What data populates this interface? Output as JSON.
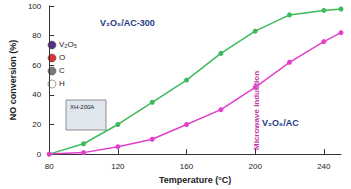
{
  "chart_data": {
    "type": "line",
    "x_label": "Temperature (°C)",
    "y_label": "NO conversion (%)",
    "x": [
      80,
      100,
      120,
      140,
      160,
      180,
      200,
      220,
      240,
      250
    ],
    "series": [
      {
        "name": "V₂O₅/AC-300",
        "color": "#3dba5a",
        "marker": "circle",
        "values": [
          0,
          7,
          20,
          35,
          50,
          68,
          83,
          94,
          97,
          98
        ]
      },
      {
        "name": "V₂O₅/AC",
        "color": "#e23fcb",
        "marker": "circle",
        "values": [
          0,
          1,
          5,
          10,
          20,
          30,
          45,
          62,
          76,
          82
        ]
      }
    ],
    "xlim": [
      80,
      250
    ],
    "xticks": [
      80,
      120,
      160,
      200,
      240
    ],
    "ylim": [
      0,
      100
    ],
    "yticks": [
      0,
      20,
      40,
      60,
      80,
      100
    ],
    "grid": false,
    "annotations": [
      "Microwave induction",
      "XH-200A"
    ],
    "atom_legend": [
      {
        "label": "V₂O₅",
        "color": "#5a2d8c"
      },
      {
        "label": "O",
        "color": "#e03030"
      },
      {
        "label": "C",
        "color": "#7a7a7a"
      },
      {
        "label": "H",
        "color": "#ffffff"
      }
    ]
  }
}
